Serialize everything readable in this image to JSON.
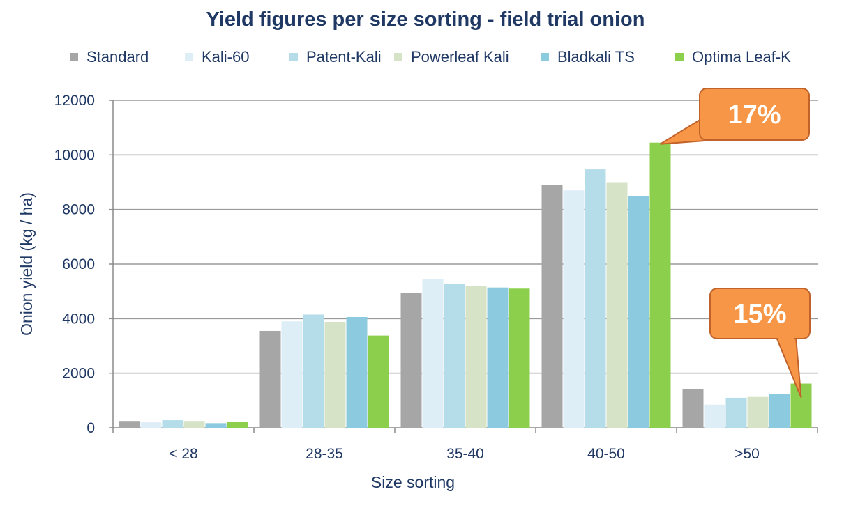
{
  "chart_data": {
    "type": "bar",
    "title": "Yield figures per size sorting - field trial onion",
    "xlabel": "Size sorting",
    "ylabel": "Onion yield (kg / ha)",
    "ylim": [
      0,
      12000
    ],
    "yticks": [
      0,
      2000,
      4000,
      6000,
      8000,
      10000,
      12000
    ],
    "grid": true,
    "legend_position": "top",
    "categories": [
      "< 28",
      "28-35",
      "35-40",
      "40-50",
      ">50"
    ],
    "series": [
      {
        "name": "Standard",
        "color": "#a6a6a6",
        "values": [
          250,
          3550,
          4950,
          8900,
          1430
        ]
      },
      {
        "name": "Kali-60",
        "color": "#deeef7",
        "values": [
          200,
          3900,
          5450,
          8700,
          850
        ]
      },
      {
        "name": "Patent-Kali",
        "color": "#b5dde9",
        "values": [
          280,
          4150,
          5280,
          9470,
          1100
        ]
      },
      {
        "name": "Powerleaf Kali",
        "color": "#d6e3c6",
        "values": [
          250,
          3880,
          5200,
          9000,
          1130
        ]
      },
      {
        "name": "Bladkali TS",
        "color": "#8ccbdf",
        "values": [
          170,
          4060,
          5140,
          8500,
          1230
        ]
      },
      {
        "name": "Optima Leaf-K",
        "color": "#8ccf4d",
        "values": [
          220,
          3380,
          5100,
          10450,
          1620
        ]
      }
    ],
    "annotations": [
      {
        "text": "17%",
        "category": "40-50",
        "series": "Optima Leaf-K"
      },
      {
        "text": "15%",
        "category": ">50",
        "series": "Optima Leaf-K"
      }
    ]
  }
}
